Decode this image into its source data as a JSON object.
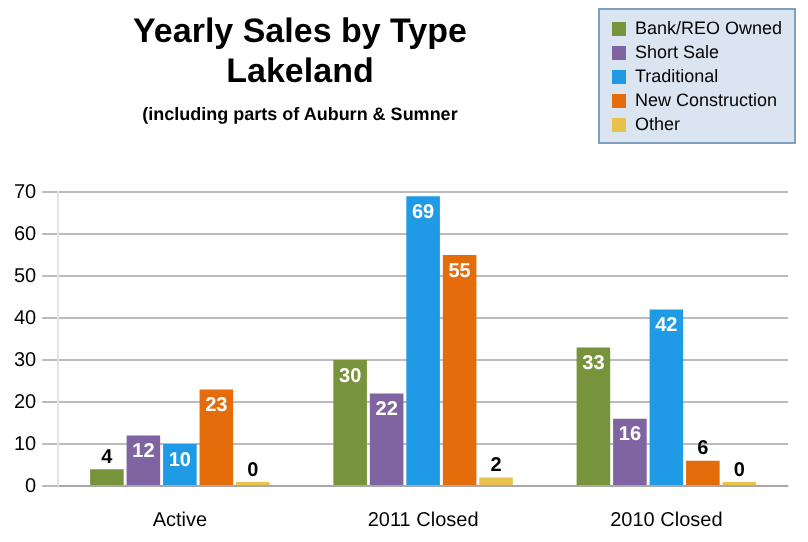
{
  "chart_data": {
    "type": "bar",
    "title": "Yearly Sales by Type",
    "subtitle": "Lakeland",
    "annotations": [
      "(including parts of Auburn & Sumner"
    ],
    "categories": [
      "Active",
      "2011 Closed",
      "2010 Closed"
    ],
    "series": [
      {
        "name": "Bank/REO Owned",
        "color": "#77933c",
        "values": [
          4,
          30,
          33
        ]
      },
      {
        "name": "Short Sale",
        "color": "#8064a2",
        "values": [
          12,
          22,
          16
        ]
      },
      {
        "name": "Traditional",
        "color": "#1f9be6",
        "values": [
          10,
          69,
          42
        ]
      },
      {
        "name": "New Construction",
        "color": "#e46c0a",
        "values": [
          23,
          55,
          6
        ]
      },
      {
        "name": "Other",
        "color": "#e8c24a",
        "values": [
          0,
          2,
          0
        ]
      }
    ],
    "ylim": [
      0,
      70
    ],
    "yticks": [
      0,
      10,
      20,
      30,
      40,
      50,
      60,
      70
    ],
    "grid": "y",
    "legend": "top right",
    "data_labels": true
  }
}
